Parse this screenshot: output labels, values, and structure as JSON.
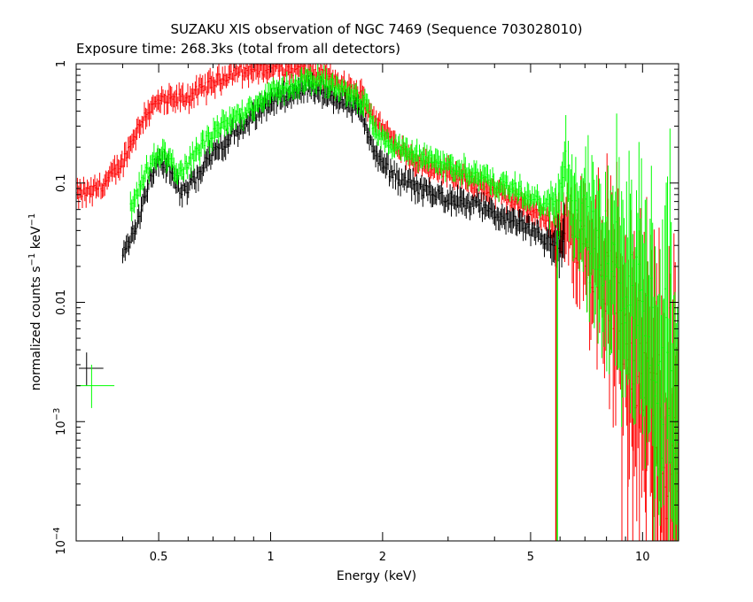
{
  "chart_data": {
    "type": "scatter",
    "title": "SUZAKU XIS observation of NGC 7469 (Sequence 703028010)",
    "subtitle": "Exposure time: 268.3ks (total from all detectors)",
    "xlabel": "Energy (keV)",
    "ylabel": {
      "base1": "normalized counts s",
      "sup1": "−1",
      "base2": " keV",
      "sup2": "−1"
    },
    "x_scale": "log",
    "y_scale": "log",
    "xlim": [
      0.3,
      12.5
    ],
    "ylim": [
      0.0001,
      1.0
    ],
    "x_ticks": [
      {
        "value": 0.5,
        "label": "0.5"
      },
      {
        "value": 1,
        "label": "1"
      },
      {
        "value": 2,
        "label": "2"
      },
      {
        "value": 5,
        "label": "5"
      },
      {
        "value": 10,
        "label": "10"
      }
    ],
    "y_ticks": [
      {
        "value": 1,
        "label": "1"
      },
      {
        "value": 0.1,
        "label": "0.1"
      },
      {
        "value": 0.01,
        "label": "0.01"
      },
      {
        "value": 0.001,
        "base": "10",
        "sup": "−3"
      },
      {
        "value": 0.0001,
        "base": "10",
        "sup": "−4"
      }
    ],
    "series": [
      {
        "color": "#ff0000",
        "points": [
          [
            0.3,
            0.08
          ],
          [
            0.33,
            0.085
          ],
          [
            0.36,
            0.1
          ],
          [
            0.4,
            0.15
          ],
          [
            0.43,
            0.25
          ],
          [
            0.46,
            0.38
          ],
          [
            0.5,
            0.48
          ],
          [
            0.55,
            0.5
          ],
          [
            0.6,
            0.52
          ],
          [
            0.7,
            0.7
          ],
          [
            0.8,
            0.85
          ],
          [
            0.9,
            0.9
          ],
          [
            1.0,
            0.9
          ],
          [
            1.2,
            0.88
          ],
          [
            1.4,
            0.8
          ],
          [
            1.6,
            0.62
          ],
          [
            1.75,
            0.55
          ],
          [
            1.85,
            0.4
          ],
          [
            2.0,
            0.28
          ],
          [
            2.2,
            0.2
          ],
          [
            2.5,
            0.15
          ],
          [
            3.0,
            0.12
          ],
          [
            3.5,
            0.1
          ],
          [
            4.0,
            0.085
          ],
          [
            4.5,
            0.07
          ],
          [
            5.0,
            0.06
          ],
          [
            5.5,
            0.05
          ],
          [
            5.8,
            0.045
          ],
          [
            6.0,
            0.045
          ],
          [
            6.3,
            0.05
          ],
          [
            6.6,
            0.025
          ],
          [
            7.0,
            0.03
          ],
          [
            7.5,
            0.022
          ],
          [
            8.0,
            0.015
          ],
          [
            8.5,
            0.01
          ],
          [
            9.0,
            0.006
          ],
          [
            9.5,
            0.004
          ],
          [
            10.0,
            0.0025
          ],
          [
            10.5,
            0.0015
          ],
          [
            11.0,
            0.0009
          ],
          [
            11.5,
            0.0006
          ],
          [
            12.0,
            0.0004
          ],
          [
            12.5,
            0.0003
          ]
        ]
      },
      {
        "color": "#000000",
        "points": [
          [
            0.4,
            0.025
          ],
          [
            0.43,
            0.04
          ],
          [
            0.47,
            0.1
          ],
          [
            0.5,
            0.16
          ],
          [
            0.53,
            0.14
          ],
          [
            0.57,
            0.085
          ],
          [
            0.6,
            0.09
          ],
          [
            0.65,
            0.13
          ],
          [
            0.7,
            0.18
          ],
          [
            0.8,
            0.26
          ],
          [
            0.9,
            0.36
          ],
          [
            1.0,
            0.48
          ],
          [
            1.1,
            0.55
          ],
          [
            1.2,
            0.6
          ],
          [
            1.3,
            0.6
          ],
          [
            1.4,
            0.55
          ],
          [
            1.5,
            0.52
          ],
          [
            1.6,
            0.48
          ],
          [
            1.7,
            0.42
          ],
          [
            1.8,
            0.32
          ],
          [
            1.9,
            0.18
          ],
          [
            2.0,
            0.14
          ],
          [
            2.2,
            0.11
          ],
          [
            2.5,
            0.09
          ],
          [
            3.0,
            0.075
          ],
          [
            3.5,
            0.065
          ],
          [
            4.0,
            0.055
          ],
          [
            4.5,
            0.048
          ],
          [
            5.0,
            0.04
          ],
          [
            5.5,
            0.033
          ],
          [
            5.8,
            0.03
          ],
          [
            6.0,
            0.028
          ],
          [
            6.2,
            0.032
          ]
        ]
      },
      {
        "color": "#00ff00",
        "points": [
          [
            0.42,
            0.06
          ],
          [
            0.45,
            0.1
          ],
          [
            0.48,
            0.15
          ],
          [
            0.52,
            0.18
          ],
          [
            0.56,
            0.12
          ],
          [
            0.6,
            0.14
          ],
          [
            0.65,
            0.2
          ],
          [
            0.7,
            0.26
          ],
          [
            0.8,
            0.35
          ],
          [
            0.9,
            0.45
          ],
          [
            1.0,
            0.55
          ],
          [
            1.1,
            0.62
          ],
          [
            1.2,
            0.7
          ],
          [
            1.3,
            0.72
          ],
          [
            1.4,
            0.7
          ],
          [
            1.6,
            0.6
          ],
          [
            1.8,
            0.45
          ],
          [
            1.9,
            0.28
          ],
          [
            2.0,
            0.24
          ],
          [
            2.3,
            0.18
          ],
          [
            2.6,
            0.16
          ],
          [
            3.0,
            0.14
          ],
          [
            3.5,
            0.12
          ],
          [
            4.0,
            0.1
          ],
          [
            4.5,
            0.09
          ],
          [
            5.0,
            0.075
          ],
          [
            5.5,
            0.065
          ],
          [
            5.8,
            0.07
          ],
          [
            6.0,
            0.065
          ],
          [
            6.2,
            0.15
          ],
          [
            6.5,
            0.05
          ],
          [
            7.0,
            0.045
          ],
          [
            7.5,
            0.035
          ],
          [
            8.0,
            0.028
          ],
          [
            8.5,
            0.02
          ],
          [
            9.0,
            0.015
          ],
          [
            9.5,
            0.01
          ],
          [
            10.0,
            0.008
          ],
          [
            10.5,
            0.006
          ],
          [
            11.0,
            0.004
          ],
          [
            11.5,
            0.003
          ],
          [
            12.0,
            0.0025
          ],
          [
            12.5,
            0.002
          ]
        ]
      }
    ],
    "absorption_dip": {
      "energy": 5.85,
      "value": 0.0001
    },
    "legend_error_bars": [
      {
        "color": "#000000",
        "x": 0.32,
        "y": 0.0028,
        "xerr": [
          0.305,
          0.355
        ],
        "yerr": [
          0.002,
          0.0038
        ]
      },
      {
        "color": "#00ff00",
        "x": 0.33,
        "y": 0.002,
        "xerr": [
          0.3,
          0.38
        ],
        "yerr": [
          0.0013,
          0.003
        ]
      }
    ]
  }
}
